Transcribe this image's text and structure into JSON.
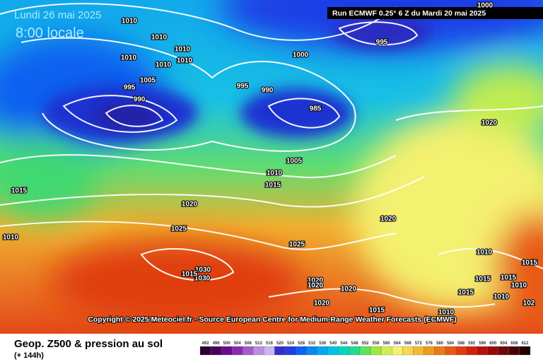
{
  "header": {
    "date": "Lundi 26 mai 2025",
    "time": "8:00 locale",
    "run": "Run ECMWF 0.25° 6 Z du Mardi 20 mai 2025"
  },
  "isobar_labels": [
    "1010",
    "1010",
    "1010",
    "1010",
    "1010",
    "1010",
    "1005",
    "995",
    "990",
    "995",
    "990",
    "985",
    "1000",
    "995",
    "1000",
    "1020",
    "1005",
    "1010",
    "1015",
    "1015",
    "1020",
    "1025",
    "1010",
    "1020",
    "1025",
    "1030",
    "1030",
    "1015",
    "1020",
    "1020",
    "1020",
    "1020",
    "1015",
    "1010",
    "1010",
    "1015",
    "1015",
    "1015",
    "1010",
    "1010",
    "1015",
    "102"
  ],
  "copyright": "Copyright © 2025 Meteociel.fr - Source European Centre for Medium-Range Weather Forecasts (ECMWF)",
  "footer": {
    "title": "Geop. Z500 & pression au sol",
    "subtitle": "(+ 144h)"
  },
  "legend": {
    "values": [
      492,
      496,
      500,
      504,
      508,
      512,
      516,
      520,
      524,
      528,
      532,
      536,
      540,
      544,
      548,
      552,
      556,
      560,
      564,
      568,
      572,
      576,
      580,
      584,
      588,
      592,
      596,
      600,
      604,
      608,
      612
    ],
    "colors": [
      "#2a0030",
      "#4b0060",
      "#6a0a8a",
      "#8a2ab0",
      "#a35ccc",
      "#b98ee0",
      "#c9b6ee",
      "#3a2ccc",
      "#1f3ee6",
      "#1060f0",
      "#0a88f0",
      "#00a8f0",
      "#00c4e6",
      "#00d6c0",
      "#20dc8c",
      "#60e060",
      "#a0e640",
      "#d0ee50",
      "#f4f070",
      "#f6d850",
      "#f4b830",
      "#f09a20",
      "#ec7a18",
      "#e85a14",
      "#e03c10",
      "#d0200c",
      "#b8100a",
      "#980808",
      "#700606",
      "#480404",
      "#200000"
    ]
  }
}
